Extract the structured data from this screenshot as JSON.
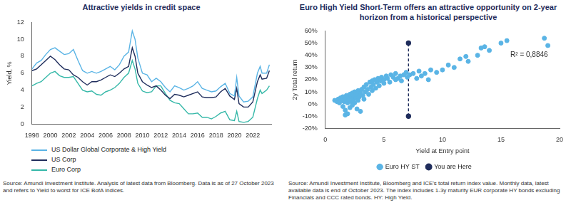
{
  "chart_data": [
    {
      "type": "line",
      "title": "Attractive yields in credit space",
      "y_label": "Yield, %",
      "x": [
        1998,
        1998.5,
        1999,
        1999.5,
        2000,
        2000.5,
        2001,
        2001.5,
        2002,
        2002.5,
        2003,
        2003.5,
        2004,
        2004.5,
        2005,
        2005.5,
        2006,
        2006.5,
        2007,
        2007.5,
        2008,
        2008.5,
        2008.9,
        2009.2,
        2009.5,
        2010,
        2010.5,
        2011,
        2011.5,
        2012,
        2012.5,
        2013,
        2013.5,
        2014,
        2014.5,
        2015,
        2015.5,
        2016,
        2016.5,
        2017,
        2017.5,
        2018,
        2018.5,
        2019,
        2019.5,
        2020,
        2020.25,
        2020.5,
        2021,
        2021.5,
        2022,
        2022.5,
        2022.8,
        2023,
        2023.5,
        2023.8
      ],
      "series": [
        {
          "name": "US Dollar Global Corporate & High Yield",
          "color": "#5ab4e5",
          "values": [
            6.5,
            7.2,
            7.5,
            8.2,
            8.8,
            9.0,
            8.6,
            8.2,
            8.3,
            8.8,
            7.5,
            6.3,
            6.0,
            6.2,
            6.0,
            6.2,
            6.5,
            6.8,
            6.4,
            7.0,
            8.0,
            8.5,
            11.0,
            10.0,
            7.8,
            6.0,
            5.8,
            5.0,
            5.4,
            5.0,
            4.3,
            3.8,
            4.5,
            4.3,
            4.0,
            4.2,
            4.5,
            5.0,
            4.2,
            4.0,
            3.8,
            3.9,
            4.4,
            4.8,
            3.6,
            3.3,
            5.5,
            3.3,
            2.6,
            2.7,
            3.2,
            6.0,
            6.8,
            6.0,
            6.0,
            7.0
          ]
        },
        {
          "name": "US Corp",
          "color": "#1f2d5c",
          "values": [
            6.3,
            6.5,
            7.0,
            7.5,
            8.0,
            7.6,
            7.0,
            6.5,
            6.4,
            5.8,
            5.5,
            5.0,
            4.6,
            5.0,
            5.0,
            5.2,
            5.5,
            5.8,
            5.6,
            6.0,
            6.5,
            6.8,
            9.0,
            8.0,
            6.0,
            5.0,
            4.6,
            4.3,
            4.5,
            4.0,
            3.4,
            3.0,
            3.5,
            3.4,
            3.2,
            3.4,
            3.6,
            3.8,
            3.2,
            3.1,
            3.1,
            3.2,
            3.8,
            4.2,
            3.3,
            2.9,
            4.2,
            2.4,
            2.0,
            2.0,
            2.6,
            5.0,
            5.8,
            5.3,
            5.4,
            6.3
          ]
        },
        {
          "name": "Euro Corp",
          "color": "#35b8a8",
          "values": [
            4.5,
            4.8,
            5.0,
            5.5,
            6.0,
            6.2,
            5.7,
            5.5,
            5.5,
            5.6,
            4.8,
            4.0,
            3.8,
            3.9,
            3.5,
            3.4,
            3.8,
            4.0,
            4.3,
            4.8,
            5.5,
            6.0,
            7.5,
            6.5,
            4.8,
            3.9,
            3.7,
            3.8,
            4.5,
            4.5,
            3.6,
            2.8,
            2.5,
            2.4,
            1.8,
            1.2,
            1.2,
            1.3,
            0.8,
            0.8,
            0.6,
            0.9,
            1.3,
            1.5,
            0.5,
            0.4,
            1.5,
            0.3,
            0.2,
            0.3,
            0.8,
            3.0,
            4.0,
            3.6,
            4.0,
            4.5
          ]
        }
      ],
      "xlim": [
        1998,
        2024
      ],
      "xticks": [
        1998,
        2000,
        2002,
        2004,
        2006,
        2008,
        2010,
        2012,
        2014,
        2016,
        2018,
        2020,
        2022
      ],
      "ylim": [
        0,
        12
      ],
      "yticks": [
        0,
        2,
        4,
        6,
        8,
        10,
        12
      ],
      "grid": false,
      "legend": "bottom",
      "source": "Source: Amundi Investment Institute. Analysis of latest data from Bloomberg. Data is as of 27 October 2023 and refers to Yield to worst for ICE BofA indices."
    },
    {
      "type": "scatter",
      "title": "Euro High Yield Short-Term offers an attractive opportunity on 2-year horizon from a historical perspective",
      "x_label": "Yield at Entry point",
      "y_label": "2y Total return",
      "series": [
        {
          "name": "Euro HY ST",
          "type": "scatter",
          "color": "#5ab4e5",
          "marker": "circle",
          "x": [
            0.8,
            1.0,
            1.1,
            1.2,
            1.3,
            1.4,
            1.5,
            1.5,
            1.6,
            1.7,
            1.7,
            1.7,
            1.8,
            1.9,
            1.9,
            2.0,
            2.0,
            2.1,
            2.1,
            2.2,
            2.2,
            2.3,
            2.3,
            2.4,
            2.4,
            2.5,
            2.5,
            2.6,
            2.7,
            2.7,
            2.8,
            2.8,
            2.9,
            3.0,
            3.0,
            3.1,
            3.2,
            3.3,
            3.3,
            3.4,
            3.5,
            3.6,
            3.7,
            3.8,
            3.9,
            4.0,
            4.0,
            4.1,
            4.2,
            4.3,
            4.4,
            4.5,
            4.6,
            4.7,
            4.8,
            5.0,
            5.0,
            5.2,
            5.3,
            5.5,
            5.6,
            5.8,
            6.0,
            6.0,
            6.2,
            6.4,
            6.5,
            6.7,
            6.9,
            7.0,
            7.2,
            7.5,
            7.8,
            8.0,
            8.2,
            8.5,
            8.8,
            9.0,
            9.5,
            10.0,
            10.5,
            11.0,
            11.5,
            12.0,
            12.2,
            13.0,
            13.3,
            13.6,
            14.0,
            15.0,
            15.5,
            18.7,
            19.0
          ],
          "values": [
            3,
            2,
            4,
            1,
            5,
            3,
            -2,
            6,
            2,
            -5,
            4,
            -9,
            7,
            1,
            -8,
            5,
            3,
            8,
            -3,
            6,
            2,
            9,
            -1,
            4,
            7,
            10,
            1,
            5,
            -4,
            8,
            3,
            11,
            6,
            9,
            -6,
            12,
            7,
            14,
            4,
            10,
            16,
            12,
            8,
            18,
            14,
            19,
            11,
            16,
            20,
            13,
            18,
            21,
            15,
            19,
            22,
            17,
            20,
            23,
            21,
            18,
            24,
            22,
            25,
            20,
            21,
            23,
            19,
            24,
            26,
            22,
            24,
            25,
            21,
            27,
            23,
            25,
            20,
            28,
            26,
            28,
            32,
            30,
            37,
            39,
            35,
            40,
            46,
            47,
            44,
            50,
            52,
            54,
            48
          ]
        },
        {
          "name": "You are Here",
          "type": "line",
          "color": "#1f2d5c",
          "marker": "circle",
          "line_style": "dashed",
          "x": [
            7.1,
            7.1
          ],
          "values": [
            -10,
            50
          ]
        }
      ],
      "xlim": [
        0,
        20
      ],
      "xticks": [
        0,
        5,
        10,
        15,
        20
      ],
      "ylim": [
        -20,
        60
      ],
      "yticks": [
        {
          "value": -20,
          "label": "-20%"
        },
        {
          "value": -10,
          "label": "-10%"
        },
        {
          "value": 0,
          "label": "0%"
        },
        {
          "value": 10,
          "label": "10%"
        },
        {
          "value": 20,
          "label": "20%"
        },
        {
          "value": 30,
          "label": "30%"
        },
        {
          "value": 40,
          "label": "40%"
        },
        {
          "value": 50,
          "label": "50%"
        },
        {
          "value": 60,
          "label": "60%"
        }
      ],
      "grid": false,
      "legend": "bottom",
      "annotations": [
        {
          "text": "R² = 0,8846",
          "x": 15.8,
          "y": 40
        }
      ],
      "source": "Source: Amundi Investment Institute, Bloomberg and ICE's total return index value. Monthly data, latest available data is end of October 2023. The index includes 1-3y maturity EUR corporate HY bonds excluding Financials and CCC rated bonds. HY: High Yield."
    }
  ]
}
